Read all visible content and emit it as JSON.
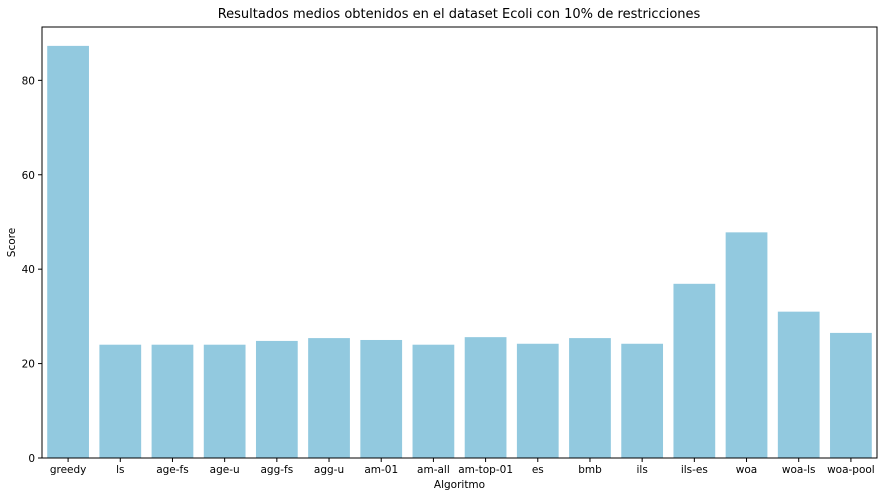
{
  "chart_data": {
    "type": "bar",
    "title": "Resultados medios obtenidos en el dataset Ecoli con 10% de restricciones",
    "xlabel": "Algoritmo",
    "ylabel": "Score",
    "categories": [
      "greedy",
      "ls",
      "age-fs",
      "age-u",
      "agg-fs",
      "agg-u",
      "am-01",
      "am-all",
      "am-top-01",
      "es",
      "bmb",
      "ils",
      "ils-es",
      "woa",
      "woa-ls",
      "woa-pool"
    ],
    "values": [
      87.3,
      24.0,
      24.0,
      24.0,
      24.8,
      25.4,
      25.0,
      24.0,
      25.6,
      24.2,
      25.4,
      24.2,
      36.9,
      47.8,
      31.0,
      26.5
    ],
    "ylim": [
      0,
      91.3
    ],
    "yticks": [
      0,
      20,
      40,
      60,
      80
    ],
    "grid": false,
    "bar_color": "#92c9df"
  }
}
